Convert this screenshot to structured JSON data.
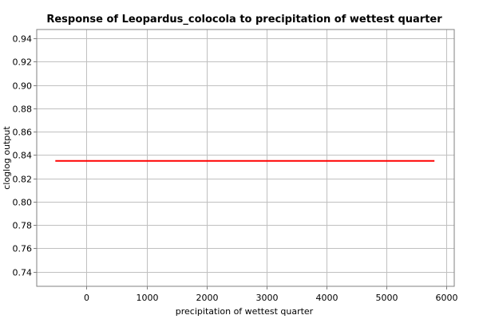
{
  "chart_data": {
    "type": "line",
    "title": "Response of Leopardus_colocola to precipitation of wettest quarter",
    "xlabel": "precipitation of wettest quarter",
    "ylabel": "cloglog output",
    "xlim": [
      -830,
      6130
    ],
    "ylim": [
      0.7275,
      0.9475
    ],
    "xticks": [
      0,
      1000,
      2000,
      3000,
      4000,
      5000,
      6000
    ],
    "yticks": [
      0.74,
      0.76,
      0.78,
      0.8,
      0.82,
      0.84,
      0.86,
      0.88,
      0.9,
      0.92,
      0.94
    ],
    "ytick_labels": [
      "0.74",
      "0.76",
      "0.78",
      "0.80",
      "0.82",
      "0.84",
      "0.86",
      "0.88",
      "0.90",
      "0.92",
      "0.94"
    ],
    "grid": true,
    "series": [
      {
        "color": "#ff0000",
        "x": [
          -520,
          5800
        ],
        "y": [
          0.835,
          0.835
        ]
      }
    ]
  }
}
